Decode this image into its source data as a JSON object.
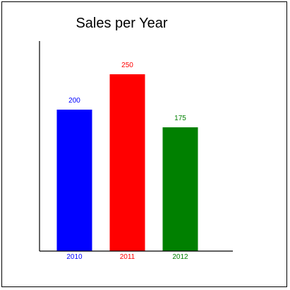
{
  "chart_data": {
    "type": "bar",
    "title": "Sales per Year",
    "xlabel": "",
    "ylabel": "",
    "categories": [
      "2010",
      "2011",
      "2012"
    ],
    "values": [
      200,
      250,
      175
    ],
    "colors": [
      "#0000ff",
      "#ff0000",
      "#008000"
    ],
    "ylim": [
      0,
      300
    ],
    "grid": false,
    "show_value_labels": true
  }
}
